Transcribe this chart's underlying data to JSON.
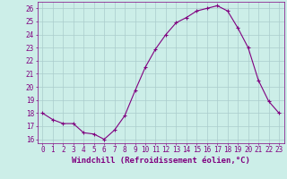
{
  "x": [
    0,
    1,
    2,
    3,
    4,
    5,
    6,
    7,
    8,
    9,
    10,
    11,
    12,
    13,
    14,
    15,
    16,
    17,
    18,
    19,
    20,
    21,
    22,
    23
  ],
  "y": [
    18,
    17.5,
    17.2,
    17.2,
    16.5,
    16.4,
    16.0,
    16.7,
    17.8,
    19.7,
    21.5,
    22.9,
    24.0,
    24.9,
    25.3,
    25.8,
    26.0,
    26.2,
    25.8,
    24.5,
    23.0,
    20.5,
    18.9,
    18.0
  ],
  "line_color": "#800080",
  "marker": "+",
  "marker_size": 3,
  "linewidth": 0.8,
  "bg_color": "#cceee8",
  "grid_color": "#aacccc",
  "xlabel": "Windchill (Refroidissement éolien,°C)",
  "xlim_min": -0.5,
  "xlim_max": 23.5,
  "ylim_min": 15.7,
  "ylim_max": 26.5,
  "yticks": [
    16,
    17,
    18,
    19,
    20,
    21,
    22,
    23,
    24,
    25,
    26
  ],
  "xticks": [
    0,
    1,
    2,
    3,
    4,
    5,
    6,
    7,
    8,
    9,
    10,
    11,
    12,
    13,
    14,
    15,
    16,
    17,
    18,
    19,
    20,
    21,
    22,
    23
  ],
  "xtick_labels": [
    "0",
    "1",
    "2",
    "3",
    "4",
    "5",
    "6",
    "7",
    "8",
    "9",
    "10",
    "11",
    "12",
    "13",
    "14",
    "15",
    "16",
    "17",
    "18",
    "19",
    "20",
    "21",
    "22",
    "23"
  ],
  "tick_fontsize": 5.5,
  "xlabel_fontsize": 6.5,
  "tick_color": "#800080",
  "axis_color": "#800080"
}
